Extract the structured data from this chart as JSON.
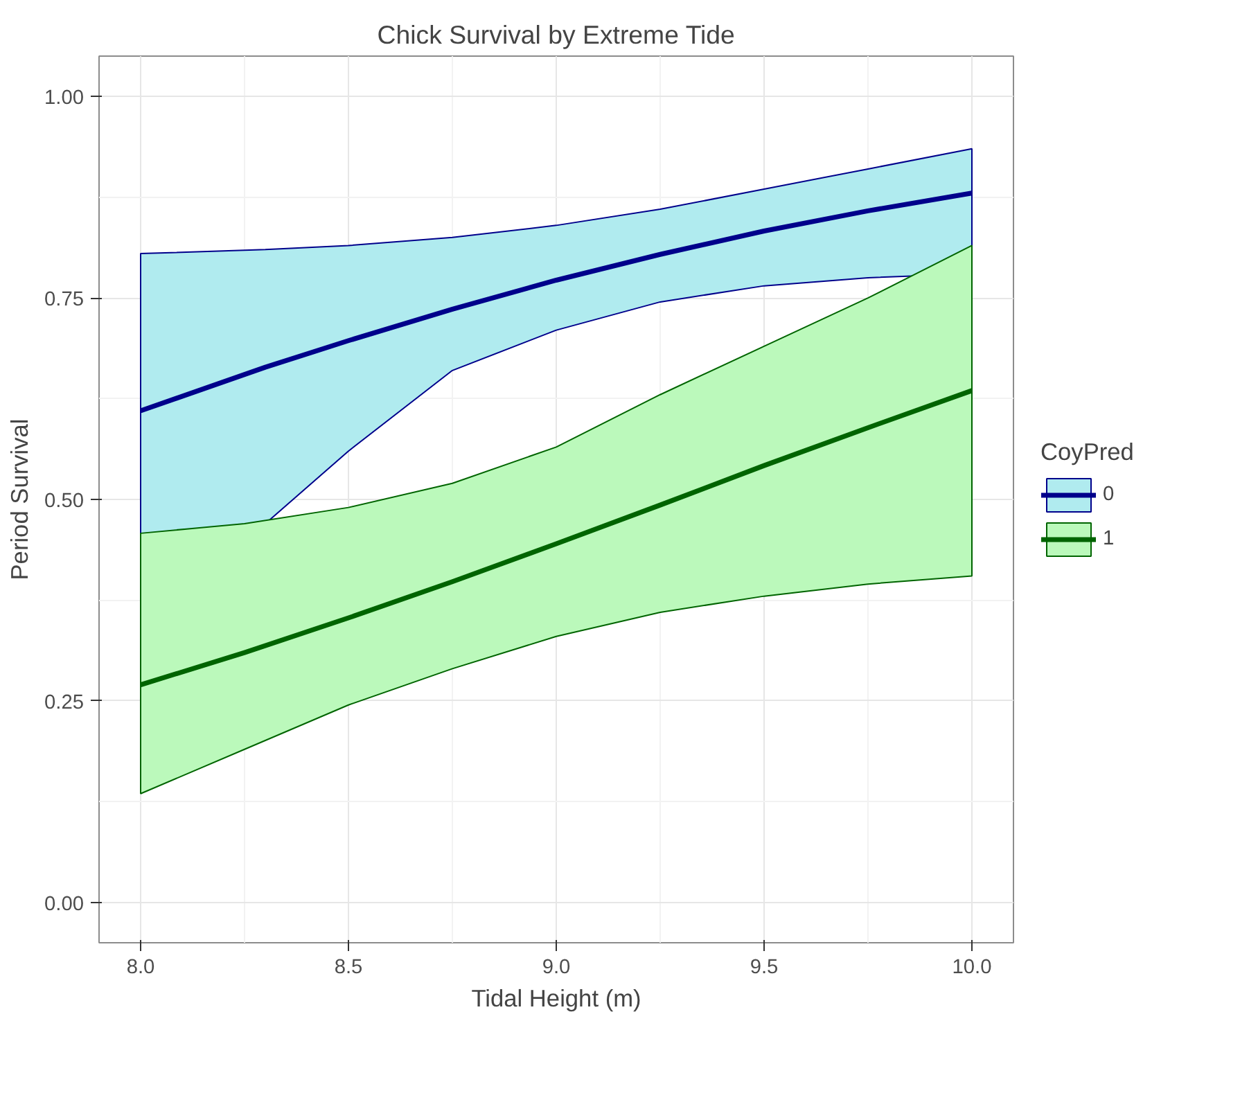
{
  "chart_data": {
    "type": "line",
    "title": "Chick Survival by Extreme Tide",
    "xlabel": "Tidal Height (m)",
    "ylabel": "Period Survival",
    "legend_title": "CoyPred",
    "xlim": [
      7.9,
      10.1
    ],
    "ylim": [
      -0.05,
      1.05
    ],
    "xticks": [
      {
        "value": 8,
        "label": "8.0"
      },
      {
        "value": 8.5,
        "label": "8.5"
      },
      {
        "value": 9,
        "label": "9.0"
      },
      {
        "value": 9.5,
        "label": "9.5"
      },
      {
        "value": 10,
        "label": "10.0"
      }
    ],
    "yticks": [
      {
        "value": 0,
        "label": "0.00"
      },
      {
        "value": 0.25,
        "label": "0.25"
      },
      {
        "value": 0.5,
        "label": "0.50"
      },
      {
        "value": 0.75,
        "label": "0.75"
      },
      {
        "value": 1,
        "label": "1.00"
      }
    ],
    "grid": true,
    "legend": "right",
    "line_style": "solid",
    "marker": "none",
    "series": [
      {
        "name": "0",
        "color": "#00008b",
        "x": [
          8.0,
          8.3,
          8.5,
          8.75,
          9.0,
          9.25,
          9.5,
          9.75,
          10.0
        ],
        "values": [
          0.61,
          0.664,
          0.697,
          0.736,
          0.772,
          0.804,
          0.833,
          0.858,
          0.88
        ],
        "lower": [
          0.44,
          0.47,
          0.56,
          0.66,
          0.71,
          0.745,
          0.765,
          0.775,
          0.78
        ],
        "upper": [
          0.805,
          0.81,
          0.815,
          0.825,
          0.84,
          0.86,
          0.885,
          0.91,
          0.935
        ]
      },
      {
        "name": "1",
        "color": "#006400",
        "x": [
          8.0,
          8.25,
          8.5,
          8.75,
          9.0,
          9.25,
          9.5,
          9.75,
          10.0
        ],
        "values": [
          0.27,
          0.31,
          0.353,
          0.398,
          0.445,
          0.493,
          0.542,
          0.589,
          0.635
        ],
        "lower": [
          0.135,
          0.19,
          0.245,
          0.29,
          0.33,
          0.36,
          0.38,
          0.395,
          0.405
        ],
        "upper": [
          0.458,
          0.47,
          0.49,
          0.52,
          0.565,
          0.63,
          0.69,
          0.75,
          0.815
        ]
      }
    ]
  }
}
